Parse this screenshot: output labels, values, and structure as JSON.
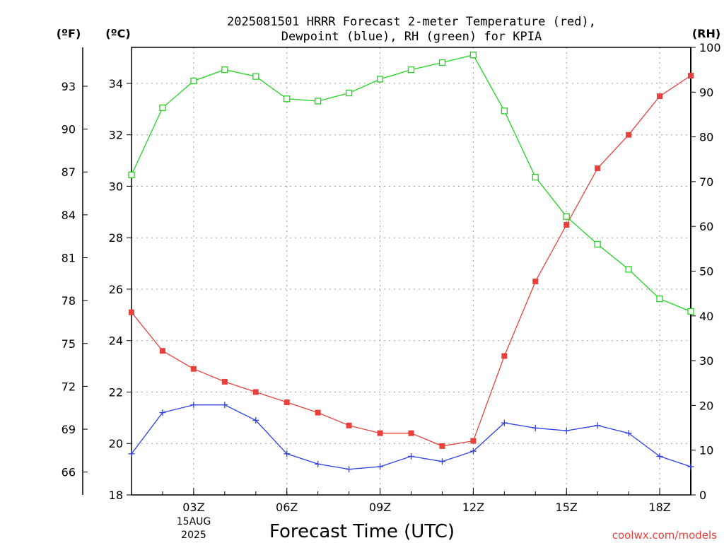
{
  "chart_data": {
    "type": "line",
    "title_line1": "2025081501 HRRR Forecast 2-meter Temperature (red),",
    "title_line2": "Dewpoint (blue), RH (green) for KPIA",
    "xlabel": "Forecast Time (UTC)",
    "left_axis_f_label": "(ºF)",
    "left_axis_c_label": "(ºC)",
    "right_axis_label": "(RH)",
    "date_label_line1": "15AUG",
    "date_label_line2": "2025",
    "watermark": "coolwx.com/models",
    "x_hours": [
      1,
      2,
      3,
      4,
      5,
      6,
      7,
      8,
      9,
      10,
      11,
      12,
      13,
      14,
      15,
      16,
      17,
      18,
      19
    ],
    "x_range": [
      1,
      19
    ],
    "x_ticks": [
      {
        "hour": 3,
        "label": "03Z"
      },
      {
        "hour": 6,
        "label": "06Z"
      },
      {
        "hour": 9,
        "label": "09Z"
      },
      {
        "hour": 12,
        "label": "12Z"
      },
      {
        "hour": 15,
        "label": "15Z"
      },
      {
        "hour": 18,
        "label": "18Z"
      }
    ],
    "celsius_range": [
      18,
      35.4
    ],
    "celsius_ticks": [
      "18",
      "20",
      "22",
      "24",
      "26",
      "28",
      "30",
      "32",
      "34"
    ],
    "fahrenheit_ticks": [
      "66",
      "69",
      "72",
      "75",
      "78",
      "81",
      "84",
      "87",
      "90",
      "93"
    ],
    "rh_range": [
      0,
      100
    ],
    "rh_ticks": [
      "0",
      "10",
      "20",
      "30",
      "40",
      "50",
      "60",
      "70",
      "80",
      "90",
      "100"
    ],
    "grid": true,
    "series": [
      {
        "name": "Temperature",
        "axis": "celsius",
        "color": "#e8403c",
        "marker": "filled-square",
        "values": [
          25.1,
          23.6,
          22.9,
          22.4,
          22.0,
          21.6,
          21.2,
          20.7,
          20.4,
          20.4,
          19.9,
          20.1,
          23.4,
          26.3,
          28.5,
          30.7,
          32.0,
          33.5,
          34.3
        ]
      },
      {
        "name": "Dewpoint",
        "axis": "celsius",
        "color": "#2c3fe8",
        "marker": "plus",
        "values": [
          19.6,
          21.2,
          21.5,
          21.5,
          20.9,
          19.6,
          19.2,
          19.0,
          19.1,
          19.5,
          19.3,
          19.7,
          20.8,
          20.6,
          20.5,
          20.7,
          20.4,
          19.5,
          19.1
        ]
      },
      {
        "name": "RH",
        "axis": "rh",
        "color": "#1fd41f",
        "marker": "open-square",
        "values": [
          71.5,
          86.5,
          92.5,
          95.0,
          93.5,
          88.5,
          88.0,
          89.8,
          92.9,
          95.0,
          96.6,
          98.3,
          85.8,
          71.0,
          62.2,
          56.0,
          50.4,
          43.8,
          41.0
        ]
      }
    ]
  }
}
